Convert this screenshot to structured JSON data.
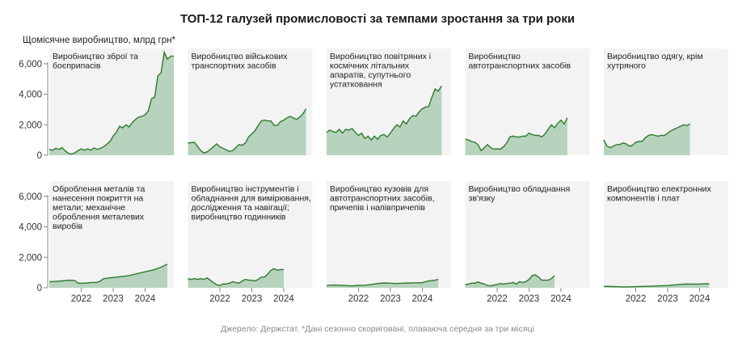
{
  "page": {
    "title": "ТОП-12 галузей промисловості за темпами зростання за три роки",
    "y_axis_label": "Щомісячне виробництво, млрд грн*",
    "source": "Джерело: Держстат. *Дані сезонно скориговані, плаваюча середня за три місяці"
  },
  "colors": {
    "panel_bg": "#f3f3f3",
    "area_fill": "#b7d3bd",
    "line": "#2e7a2e",
    "axis_text": "#333333"
  },
  "chart_data": {
    "type": "area",
    "title": "ТОП-12 галузей промисловості за темпами зростання за три роки",
    "ylabel": "Щомісячне виробництво, млрд грн*",
    "ylim": [
      0,
      7000
    ],
    "yticks": [
      0,
      2000,
      4000,
      6000
    ],
    "ytick_labels": [
      "0",
      "2,000",
      "4,000",
      "6,000"
    ],
    "xlim": [
      2021.0,
      2024.9
    ],
    "xticks": [
      2022,
      2023,
      2024
    ],
    "xtick_labels": [
      "2022",
      "2023",
      "2024"
    ],
    "series": [
      {
        "name": "Виробництво зброї та боєприпасів",
        "points": [
          [
            2021.0,
            400
          ],
          [
            2021.1,
            320
          ],
          [
            2021.2,
            450
          ],
          [
            2021.3,
            380
          ],
          [
            2021.4,
            500
          ],
          [
            2021.5,
            280
          ],
          [
            2021.6,
            120
          ],
          [
            2021.7,
            80
          ],
          [
            2021.8,
            160
          ],
          [
            2021.9,
            300
          ],
          [
            2022.0,
            420
          ],
          [
            2022.1,
            330
          ],
          [
            2022.2,
            420
          ],
          [
            2022.3,
            330
          ],
          [
            2022.4,
            470
          ],
          [
            2022.5,
            380
          ],
          [
            2022.6,
            450
          ],
          [
            2022.7,
            550
          ],
          [
            2022.8,
            720
          ],
          [
            2022.9,
            900
          ],
          [
            2023.0,
            1250
          ],
          [
            2023.1,
            1500
          ],
          [
            2023.2,
            1900
          ],
          [
            2023.3,
            1800
          ],
          [
            2023.4,
            2000
          ],
          [
            2023.5,
            1850
          ],
          [
            2023.6,
            2150
          ],
          [
            2023.7,
            2350
          ],
          [
            2023.8,
            2500
          ],
          [
            2023.9,
            2550
          ],
          [
            2024.0,
            2650
          ],
          [
            2024.1,
            2900
          ],
          [
            2024.2,
            3700
          ],
          [
            2024.3,
            3800
          ],
          [
            2024.4,
            5200
          ],
          [
            2024.5,
            5400
          ],
          [
            2024.6,
            6750
          ],
          [
            2024.7,
            6300
          ],
          [
            2024.8,
            6500
          ],
          [
            2024.9,
            6500
          ]
        ]
      },
      {
        "name": "Виробництво військових транспортних засобів",
        "points": [
          [
            2021.0,
            800
          ],
          [
            2021.2,
            850
          ],
          [
            2021.4,
            300
          ],
          [
            2021.5,
            150
          ],
          [
            2021.6,
            220
          ],
          [
            2021.7,
            380
          ],
          [
            2021.8,
            550
          ],
          [
            2021.9,
            750
          ],
          [
            2022.0,
            550
          ],
          [
            2022.2,
            350
          ],
          [
            2022.3,
            250
          ],
          [
            2022.4,
            300
          ],
          [
            2022.5,
            500
          ],
          [
            2022.6,
            700
          ],
          [
            2022.7,
            650
          ],
          [
            2022.8,
            800
          ],
          [
            2022.9,
            1200
          ],
          [
            2023.0,
            1400
          ],
          [
            2023.1,
            1600
          ],
          [
            2023.2,
            1950
          ],
          [
            2023.3,
            2250
          ],
          [
            2023.4,
            2300
          ],
          [
            2023.5,
            2250
          ],
          [
            2023.6,
            2250
          ],
          [
            2023.7,
            1950
          ],
          [
            2023.8,
            1950
          ],
          [
            2023.9,
            2200
          ],
          [
            2024.0,
            2300
          ],
          [
            2024.1,
            2450
          ],
          [
            2024.2,
            2550
          ],
          [
            2024.3,
            2450
          ],
          [
            2024.4,
            2350
          ],
          [
            2024.5,
            2500
          ],
          [
            2024.6,
            2700
          ],
          [
            2024.7,
            3050
          ]
        ]
      },
      {
        "name": "Виробництво повітряних і космічних літальних апаратів, супутнього устатковання",
        "points": [
          [
            2021.0,
            1500
          ],
          [
            2021.1,
            1650
          ],
          [
            2021.2,
            1550
          ],
          [
            2021.3,
            1500
          ],
          [
            2021.4,
            1700
          ],
          [
            2021.5,
            1450
          ],
          [
            2021.6,
            1700
          ],
          [
            2021.7,
            1650
          ],
          [
            2021.8,
            1750
          ],
          [
            2021.9,
            1500
          ],
          [
            2022.0,
            1300
          ],
          [
            2022.1,
            1450
          ],
          [
            2022.2,
            1100
          ],
          [
            2022.3,
            1250
          ],
          [
            2022.4,
            1000
          ],
          [
            2022.5,
            1250
          ],
          [
            2022.6,
            1050
          ],
          [
            2022.7,
            1300
          ],
          [
            2022.8,
            1350
          ],
          [
            2022.9,
            1200
          ],
          [
            2023.0,
            1450
          ],
          [
            2023.1,
            1750
          ],
          [
            2023.2,
            2000
          ],
          [
            2023.3,
            1850
          ],
          [
            2023.4,
            2250
          ],
          [
            2023.5,
            2050
          ],
          [
            2023.6,
            2400
          ],
          [
            2023.7,
            2600
          ],
          [
            2023.8,
            2550
          ],
          [
            2023.9,
            2850
          ],
          [
            2024.0,
            3050
          ],
          [
            2024.1,
            3150
          ],
          [
            2024.2,
            3200
          ],
          [
            2024.3,
            3800
          ],
          [
            2024.4,
            4350
          ],
          [
            2024.5,
            4200
          ],
          [
            2024.6,
            4550
          ]
        ]
      },
      {
        "name": "Виробництво автотранспортних засобів",
        "points": [
          [
            2021.0,
            1050
          ],
          [
            2021.1,
            1000
          ],
          [
            2021.2,
            900
          ],
          [
            2021.3,
            850
          ],
          [
            2021.4,
            700
          ],
          [
            2021.5,
            300
          ],
          [
            2021.6,
            500
          ],
          [
            2021.7,
            700
          ],
          [
            2021.8,
            500
          ],
          [
            2021.9,
            400
          ],
          [
            2022.0,
            420
          ],
          [
            2022.1,
            400
          ],
          [
            2022.2,
            550
          ],
          [
            2022.3,
            800
          ],
          [
            2022.4,
            1200
          ],
          [
            2022.5,
            1250
          ],
          [
            2022.6,
            1200
          ],
          [
            2022.7,
            1200
          ],
          [
            2022.8,
            1250
          ],
          [
            2022.9,
            1250
          ],
          [
            2023.0,
            1450
          ],
          [
            2023.1,
            1350
          ],
          [
            2023.2,
            1300
          ],
          [
            2023.3,
            1300
          ],
          [
            2023.4,
            1200
          ],
          [
            2023.5,
            1400
          ],
          [
            2023.6,
            1700
          ],
          [
            2023.7,
            2000
          ],
          [
            2023.8,
            1800
          ],
          [
            2023.9,
            2100
          ],
          [
            2024.0,
            2300
          ],
          [
            2024.1,
            2050
          ],
          [
            2024.2,
            2450
          ]
        ]
      },
      {
        "name": "Виробництво одягу, крім хутряного",
        "points": [
          [
            2021.0,
            1000
          ],
          [
            2021.1,
            600
          ],
          [
            2021.2,
            500
          ],
          [
            2021.3,
            600
          ],
          [
            2021.4,
            700
          ],
          [
            2021.5,
            700
          ],
          [
            2021.6,
            800
          ],
          [
            2021.7,
            750
          ],
          [
            2021.8,
            600
          ],
          [
            2021.9,
            650
          ],
          [
            2022.0,
            850
          ],
          [
            2022.1,
            900
          ],
          [
            2022.2,
            900
          ],
          [
            2022.3,
            1150
          ],
          [
            2022.4,
            1300
          ],
          [
            2022.5,
            1350
          ],
          [
            2022.6,
            1300
          ],
          [
            2022.7,
            1250
          ],
          [
            2022.8,
            1300
          ],
          [
            2022.9,
            1300
          ],
          [
            2023.0,
            1450
          ],
          [
            2023.1,
            1600
          ],
          [
            2023.2,
            1700
          ],
          [
            2023.3,
            1800
          ],
          [
            2023.4,
            1900
          ],
          [
            2023.5,
            2000
          ],
          [
            2023.6,
            1950
          ],
          [
            2023.7,
            2050
          ]
        ]
      },
      {
        "name": "Оброблення металів та нанесення покриття на метали; механічне оброблення металевих виробів",
        "points": [
          [
            2021.0,
            400
          ],
          [
            2021.2,
            420
          ],
          [
            2021.4,
            450
          ],
          [
            2021.6,
            500
          ],
          [
            2021.8,
            480
          ],
          [
            2021.9,
            300
          ],
          [
            2022.1,
            300
          ],
          [
            2022.3,
            350
          ],
          [
            2022.5,
            350
          ],
          [
            2022.6,
            450
          ],
          [
            2022.7,
            600
          ],
          [
            2022.9,
            650
          ],
          [
            2023.1,
            700
          ],
          [
            2023.3,
            750
          ],
          [
            2023.5,
            800
          ],
          [
            2023.7,
            900
          ],
          [
            2023.9,
            1000
          ],
          [
            2024.1,
            1100
          ],
          [
            2024.3,
            1200
          ],
          [
            2024.5,
            1350
          ],
          [
            2024.7,
            1550
          ]
        ]
      },
      {
        "name": "Виробництво інструментів і обладнання для вимірювання, дослідження та навігації; виробництво годинників",
        "points": [
          [
            2021.0,
            600
          ],
          [
            2021.1,
            550
          ],
          [
            2021.2,
            600
          ],
          [
            2021.3,
            550
          ],
          [
            2021.4,
            600
          ],
          [
            2021.5,
            550
          ],
          [
            2021.6,
            650
          ],
          [
            2021.7,
            500
          ],
          [
            2021.8,
            350
          ],
          [
            2021.9,
            200
          ],
          [
            2022.0,
            150
          ],
          [
            2022.1,
            250
          ],
          [
            2022.2,
            250
          ],
          [
            2022.3,
            300
          ],
          [
            2022.4,
            400
          ],
          [
            2022.5,
            350
          ],
          [
            2022.6,
            300
          ],
          [
            2022.7,
            450
          ],
          [
            2022.8,
            550
          ],
          [
            2022.9,
            500
          ],
          [
            2023.0,
            500
          ],
          [
            2023.1,
            450
          ],
          [
            2023.2,
            550
          ],
          [
            2023.3,
            700
          ],
          [
            2023.4,
            700
          ],
          [
            2023.5,
            900
          ],
          [
            2023.6,
            1150
          ],
          [
            2023.7,
            1250
          ],
          [
            2023.8,
            1150
          ],
          [
            2023.9,
            1200
          ],
          [
            2024.0,
            1200
          ]
        ]
      },
      {
        "name": "Виробництво кузовів для автотранспортних засобів, причепів і напівпричепів",
        "points": [
          [
            2021.0,
            150
          ],
          [
            2021.2,
            180
          ],
          [
            2021.4,
            170
          ],
          [
            2021.6,
            150
          ],
          [
            2021.8,
            120
          ],
          [
            2022.0,
            160
          ],
          [
            2022.2,
            170
          ],
          [
            2022.4,
            220
          ],
          [
            2022.6,
            280
          ],
          [
            2022.8,
            320
          ],
          [
            2023.0,
            300
          ],
          [
            2023.2,
            280
          ],
          [
            2023.4,
            300
          ],
          [
            2023.6,
            320
          ],
          [
            2023.8,
            330
          ],
          [
            2024.0,
            340
          ],
          [
            2024.2,
            450
          ],
          [
            2024.4,
            500
          ],
          [
            2024.5,
            550
          ]
        ]
      },
      {
        "name": "Виробництво обладнання зв'язку",
        "points": [
          [
            2021.0,
            200
          ],
          [
            2021.1,
            250
          ],
          [
            2021.2,
            300
          ],
          [
            2021.3,
            300
          ],
          [
            2021.4,
            380
          ],
          [
            2021.5,
            300
          ],
          [
            2021.6,
            250
          ],
          [
            2021.7,
            150
          ],
          [
            2021.8,
            120
          ],
          [
            2021.9,
            180
          ],
          [
            2022.0,
            220
          ],
          [
            2022.1,
            280
          ],
          [
            2022.2,
            250
          ],
          [
            2022.3,
            280
          ],
          [
            2022.4,
            300
          ],
          [
            2022.5,
            350
          ],
          [
            2022.6,
            250
          ],
          [
            2022.7,
            400
          ],
          [
            2022.8,
            350
          ],
          [
            2022.9,
            400
          ],
          [
            2023.0,
            550
          ],
          [
            2023.1,
            800
          ],
          [
            2023.2,
            850
          ],
          [
            2023.3,
            700
          ],
          [
            2023.4,
            500
          ],
          [
            2023.5,
            500
          ],
          [
            2023.6,
            500
          ],
          [
            2023.7,
            600
          ],
          [
            2023.8,
            800
          ]
        ]
      },
      {
        "name": "Виробництво електронних компонентів і плат",
        "points": [
          [
            2021.0,
            100
          ],
          [
            2021.3,
            80
          ],
          [
            2021.6,
            60
          ],
          [
            2021.9,
            70
          ],
          [
            2022.2,
            90
          ],
          [
            2022.5,
            110
          ],
          [
            2022.8,
            130
          ],
          [
            2023.0,
            150
          ],
          [
            2023.2,
            180
          ],
          [
            2023.4,
            230
          ],
          [
            2023.6,
            250
          ],
          [
            2023.8,
            240
          ],
          [
            2024.0,
            250
          ],
          [
            2024.2,
            270
          ],
          [
            2024.3,
            260
          ]
        ]
      }
    ]
  }
}
